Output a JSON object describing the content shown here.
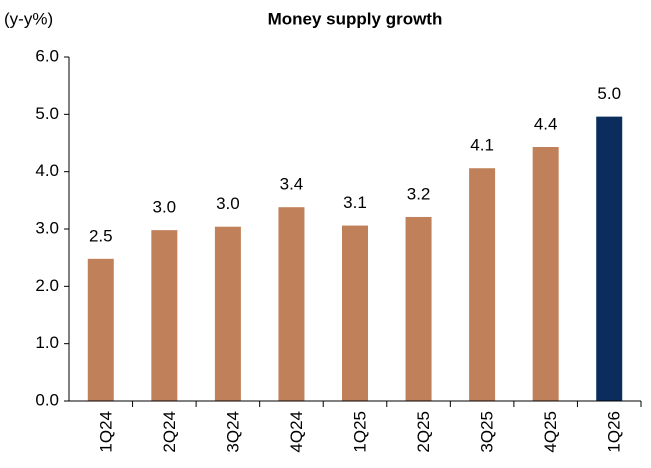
{
  "chart_data": {
    "type": "bar",
    "title": "Money supply growth",
    "y_axis_label": "(y-y%)",
    "categories": [
      "1Q24",
      "2Q24",
      "3Q24",
      "4Q24",
      "1Q25",
      "2Q25",
      "3Q25",
      "4Q25",
      "1Q26"
    ],
    "values": [
      2.48,
      2.98,
      3.04,
      3.38,
      3.06,
      3.21,
      4.06,
      4.43,
      4.96
    ],
    "value_labels": [
      "2.5",
      "3.0",
      "3.0",
      "3.4",
      "3.1",
      "3.2",
      "4.1",
      "4.4",
      "5.0"
    ],
    "colors": [
      "#c0805a",
      "#c0805a",
      "#c0805a",
      "#c0805a",
      "#c0805a",
      "#c0805a",
      "#c0805a",
      "#c0805a",
      "#0a2d5e"
    ],
    "ylim": [
      0,
      6
    ],
    "yticks": [
      {
        "value": 0,
        "label": "0.0"
      },
      {
        "value": 1,
        "label": "1.0"
      },
      {
        "value": 2,
        "label": "2.0"
      },
      {
        "value": 3,
        "label": "3.0"
      },
      {
        "value": 4,
        "label": "4.0"
      },
      {
        "value": 5,
        "label": "5.0"
      },
      {
        "value": 6,
        "label": "6.0"
      }
    ],
    "grid": false
  }
}
